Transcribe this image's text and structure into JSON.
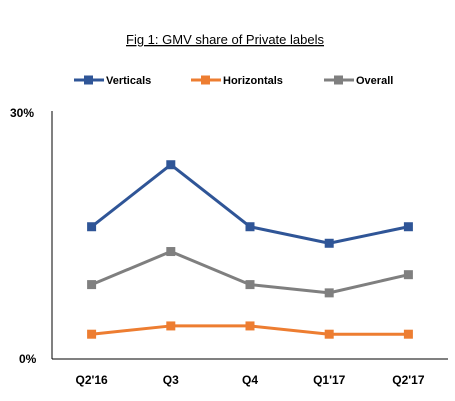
{
  "chart_data": {
    "type": "line",
    "title": "Fig 1: GMV share of Private labels",
    "xlabel": "",
    "ylabel": "",
    "categories": [
      "Q2'16",
      "Q3",
      "Q4",
      "Q1'17",
      "Q2'17"
    ],
    "y_ticks": [
      "30%",
      "0%"
    ],
    "ylim": [
      0,
      30
    ],
    "grid": false,
    "legend_position": "top",
    "series": [
      {
        "name": "Verticals",
        "color": "#2f5597",
        "marker": "square",
        "values": [
          16,
          23.5,
          16,
          14,
          16
        ]
      },
      {
        "name": "Horizontals",
        "color": "#ed7d31",
        "marker": "square",
        "values": [
          3,
          4,
          4,
          3,
          3
        ]
      },
      {
        "name": "Overall",
        "color": "#7f7f7f",
        "marker": "square",
        "values": [
          9,
          13,
          9,
          8,
          10.2
        ]
      }
    ]
  }
}
